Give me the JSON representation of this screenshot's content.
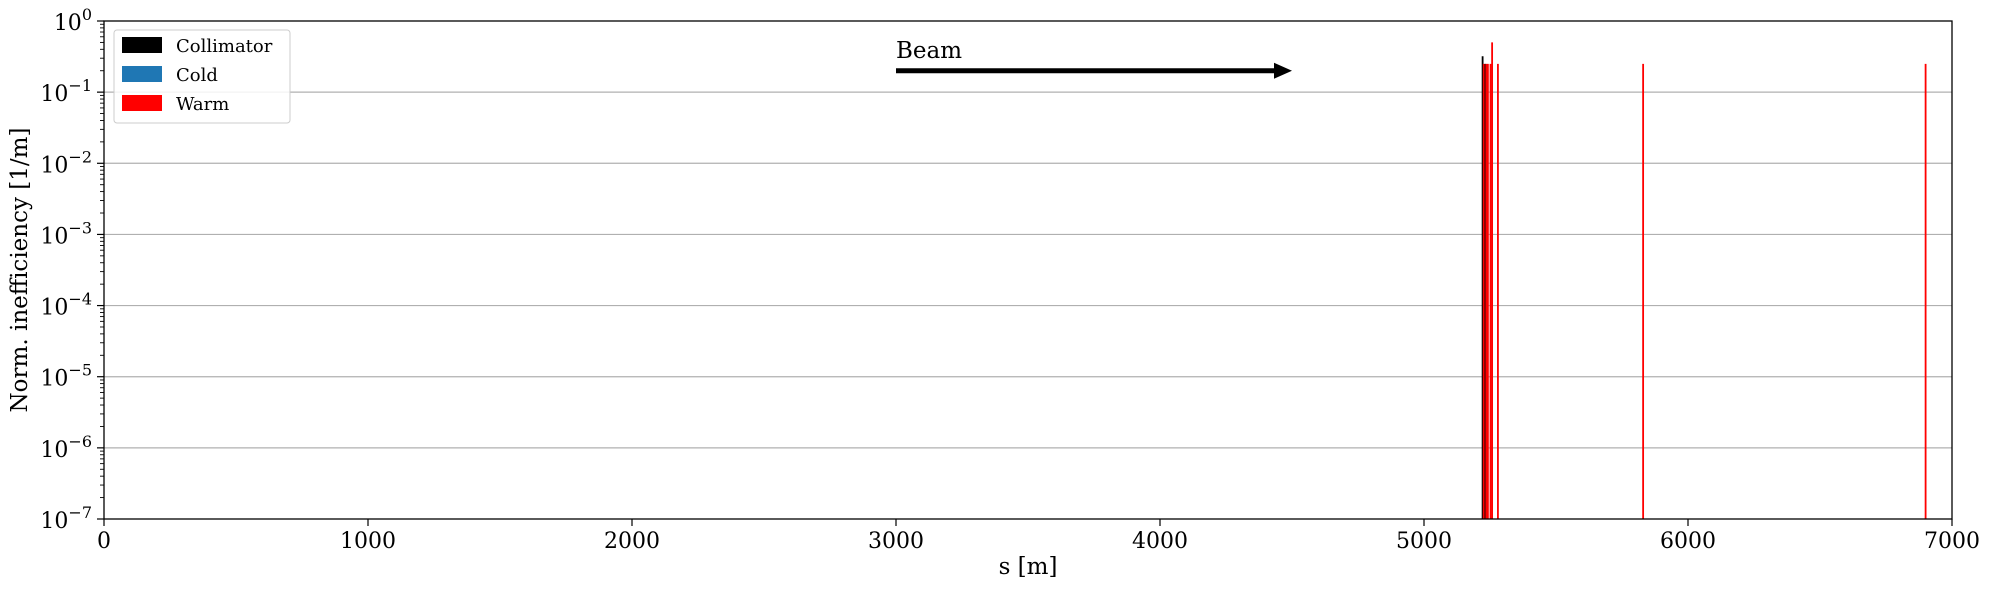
{
  "chart_data": {
    "type": "bar",
    "xlabel": "s [m]",
    "ylabel": "Norm. inefficiency [1/m]",
    "xlim": [
      0,
      7000
    ],
    "ylim": [
      1e-07,
      1
    ],
    "yscale": "log",
    "grid": "y-major",
    "legend_position": "top-left",
    "x_ticks": [
      "0",
      "1000",
      "2000",
      "3000",
      "4000",
      "5000",
      "6000",
      "7000"
    ],
    "y_ticks": [
      {
        "base": "10",
        "exp": "0"
      },
      {
        "base": "10",
        "exp": "−1"
      },
      {
        "base": "10",
        "exp": "−2"
      },
      {
        "base": "10",
        "exp": "−3"
      },
      {
        "base": "10",
        "exp": "−4"
      },
      {
        "base": "10",
        "exp": "−5"
      },
      {
        "base": "10",
        "exp": "−6"
      },
      {
        "base": "10",
        "exp": "−7"
      }
    ],
    "series": [
      {
        "name": "Collimator",
        "color": "#000000",
        "x": [
          5222,
          5232
        ],
        "y": [
          0.32,
          0.25
        ]
      },
      {
        "name": "Cold",
        "color": "#1f77b4",
        "x": [],
        "y": []
      },
      {
        "name": "Warm",
        "color": "#ff0000",
        "x": [
          5226,
          5236,
          5242,
          5252,
          5258,
          5280,
          5830,
          6900
        ],
        "y": [
          0.25,
          0.25,
          0.25,
          0.25,
          0.5,
          0.25,
          0.25,
          0.25
        ]
      }
    ],
    "annotation": {
      "text": "Beam",
      "x_start": 3000,
      "x_end": 4500,
      "y": 0.2
    }
  }
}
